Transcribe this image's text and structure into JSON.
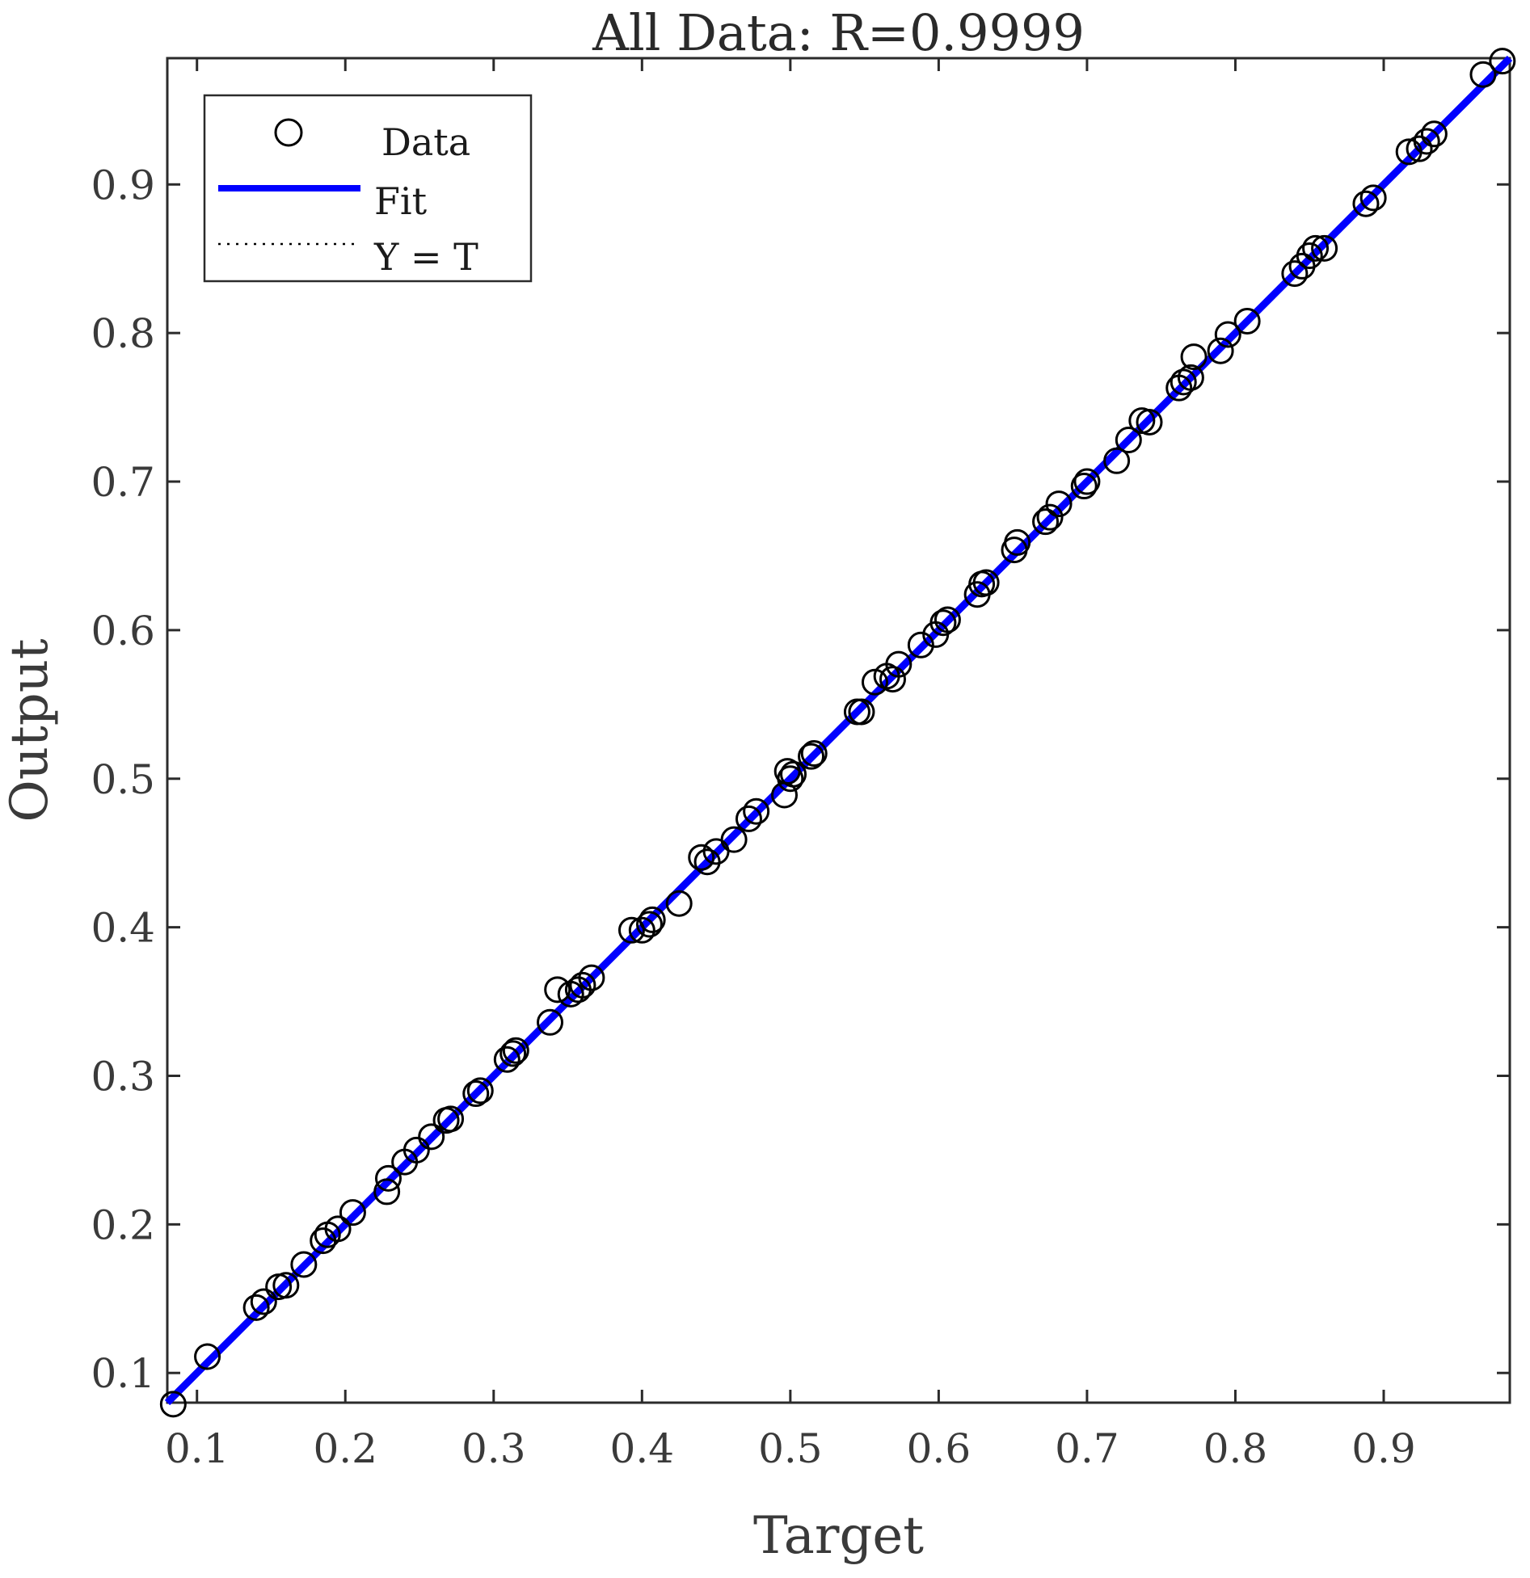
{
  "chart_data": {
    "type": "scatter",
    "title": "All Data: R=0.9999",
    "xlabel": "Target",
    "ylabel": "Output",
    "xlim": [
      0.08,
      0.985
    ],
    "ylim": [
      0.08,
      0.985
    ],
    "xticks": [
      "0.1",
      "0.2",
      "0.3",
      "0.4",
      "0.5",
      "0.6",
      "0.7",
      "0.8",
      "0.9"
    ],
    "yticks": [
      "0.1",
      "0.2",
      "0.3",
      "0.4",
      "0.5",
      "0.6",
      "0.7",
      "0.8",
      "0.9"
    ],
    "grid": false,
    "legend_position": "top-left",
    "legend": [
      {
        "label": "Data",
        "marker": "circle",
        "color": "#000000"
      },
      {
        "label": "Fit",
        "line": "solid",
        "color": "#0000ff"
      },
      {
        "label": "Y = T",
        "line": "dotted",
        "color": "#000000"
      }
    ],
    "fit_line": {
      "slope": 1.0,
      "intercept": 0.0
    },
    "series": [
      {
        "name": "Data",
        "points": [
          [
            0.084,
            0.079
          ],
          [
            0.107,
            0.111
          ],
          [
            0.14,
            0.144
          ],
          [
            0.145,
            0.148
          ],
          [
            0.155,
            0.158
          ],
          [
            0.16,
            0.159
          ],
          [
            0.172,
            0.173
          ],
          [
            0.185,
            0.189
          ],
          [
            0.188,
            0.193
          ],
          [
            0.195,
            0.197
          ],
          [
            0.205,
            0.208
          ],
          [
            0.228,
            0.222
          ],
          [
            0.229,
            0.231
          ],
          [
            0.24,
            0.242
          ],
          [
            0.248,
            0.25
          ],
          [
            0.258,
            0.259
          ],
          [
            0.268,
            0.27
          ],
          [
            0.271,
            0.271
          ],
          [
            0.288,
            0.288
          ],
          [
            0.291,
            0.29
          ],
          [
            0.309,
            0.311
          ],
          [
            0.313,
            0.315
          ],
          [
            0.315,
            0.317
          ],
          [
            0.338,
            0.336
          ],
          [
            0.343,
            0.358
          ],
          [
            0.352,
            0.355
          ],
          [
            0.357,
            0.358
          ],
          [
            0.36,
            0.361
          ],
          [
            0.366,
            0.366
          ],
          [
            0.393,
            0.398
          ],
          [
            0.4,
            0.398
          ],
          [
            0.405,
            0.402
          ],
          [
            0.407,
            0.405
          ],
          [
            0.425,
            0.416
          ],
          [
            0.44,
            0.447
          ],
          [
            0.444,
            0.444
          ],
          [
            0.45,
            0.451
          ],
          [
            0.462,
            0.459
          ],
          [
            0.472,
            0.473
          ],
          [
            0.477,
            0.478
          ],
          [
            0.496,
            0.489
          ],
          [
            0.498,
            0.505
          ],
          [
            0.5,
            0.5
          ],
          [
            0.502,
            0.503
          ],
          [
            0.514,
            0.515
          ],
          [
            0.516,
            0.517
          ],
          [
            0.545,
            0.545
          ],
          [
            0.548,
            0.545
          ],
          [
            0.557,
            0.565
          ],
          [
            0.565,
            0.569
          ],
          [
            0.569,
            0.567
          ],
          [
            0.573,
            0.577
          ],
          [
            0.588,
            0.59
          ],
          [
            0.598,
            0.597
          ],
          [
            0.603,
            0.605
          ],
          [
            0.606,
            0.607
          ],
          [
            0.626,
            0.624
          ],
          [
            0.629,
            0.631
          ],
          [
            0.632,
            0.632
          ],
          [
            0.651,
            0.654
          ],
          [
            0.653,
            0.659
          ],
          [
            0.672,
            0.673
          ],
          [
            0.675,
            0.676
          ],
          [
            0.681,
            0.685
          ],
          [
            0.698,
            0.697
          ],
          [
            0.7,
            0.7
          ],
          [
            0.72,
            0.714
          ],
          [
            0.728,
            0.728
          ],
          [
            0.737,
            0.741
          ],
          [
            0.742,
            0.74
          ],
          [
            0.762,
            0.763
          ],
          [
            0.765,
            0.767
          ],
          [
            0.77,
            0.77
          ],
          [
            0.772,
            0.784
          ],
          [
            0.79,
            0.788
          ],
          [
            0.795,
            0.799
          ],
          [
            0.808,
            0.808
          ],
          [
            0.84,
            0.84
          ],
          [
            0.845,
            0.845
          ],
          [
            0.85,
            0.852
          ],
          [
            0.854,
            0.857
          ],
          [
            0.86,
            0.857
          ],
          [
            0.888,
            0.887
          ],
          [
            0.893,
            0.891
          ],
          [
            0.917,
            0.922
          ],
          [
            0.924,
            0.924
          ],
          [
            0.929,
            0.929
          ],
          [
            0.934,
            0.934
          ],
          [
            0.967,
            0.974
          ],
          [
            0.98,
            0.983
          ]
        ]
      }
    ]
  }
}
